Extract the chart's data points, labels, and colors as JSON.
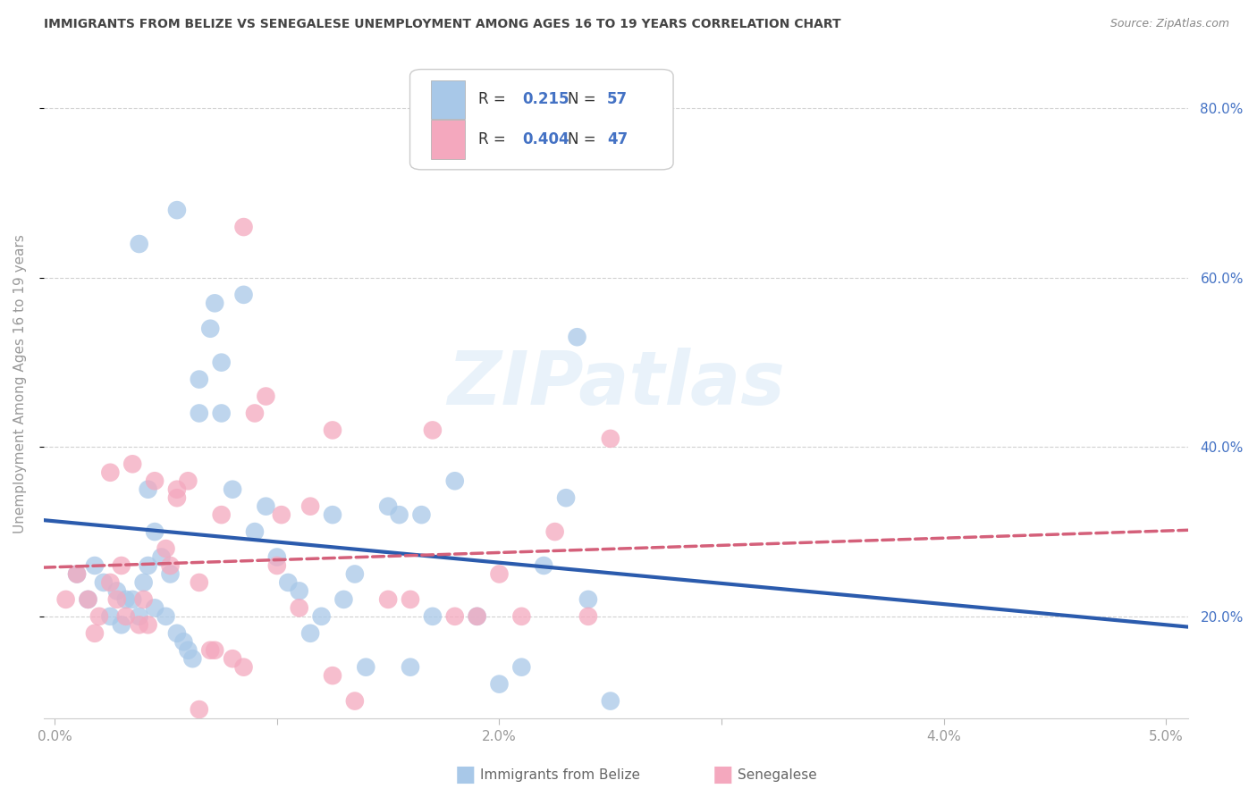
{
  "title": "IMMIGRANTS FROM BELIZE VS SENEGALESE UNEMPLOYMENT AMONG AGES 16 TO 19 YEARS CORRELATION CHART",
  "source": "Source: ZipAtlas.com",
  "ylabel": "Unemployment Among Ages 16 to 19 years",
  "xlim": [
    -0.05,
    5.1
  ],
  "ylim": [
    8.0,
    87.0
  ],
  "xtick_positions": [
    0.0,
    1.0,
    2.0,
    3.0,
    4.0,
    5.0
  ],
  "xticklabels": [
    "0.0%",
    "",
    "2.0%",
    "",
    "4.0%",
    "5.0%"
  ],
  "ytick_grid": [
    20.0,
    40.0,
    60.0,
    80.0
  ],
  "yticklabels_right": [
    "20.0%",
    "40.0%",
    "60.0%",
    "80.0%"
  ],
  "belize_R": "0.215",
  "belize_N": "57",
  "senegal_R": "0.404",
  "senegal_N": "47",
  "belize_color": "#A8C8E8",
  "senegal_color": "#F4A8BE",
  "belize_line_color": "#2B5BAD",
  "senegal_line_color": "#D4607A",
  "watermark": "ZIPatlas",
  "belize_x": [
    0.1,
    0.15,
    0.18,
    0.22,
    0.25,
    0.28,
    0.3,
    0.32,
    0.35,
    0.38,
    0.4,
    0.42,
    0.45,
    0.48,
    0.5,
    0.52,
    0.55,
    0.58,
    0.6,
    0.62,
    0.65,
    0.7,
    0.72,
    0.75,
    0.8,
    0.9,
    0.95,
    1.0,
    1.05,
    1.1,
    1.15,
    1.2,
    1.25,
    1.3,
    1.35,
    1.4,
    1.5,
    1.55,
    1.6,
    1.65,
    1.7,
    1.8,
    1.9,
    2.0,
    2.1,
    2.2,
    2.3,
    2.4,
    2.5,
    0.55,
    0.65,
    0.75,
    0.85,
    0.38,
    0.42,
    0.45,
    2.35
  ],
  "belize_y": [
    25.0,
    22.0,
    26.0,
    24.0,
    20.0,
    23.0,
    19.0,
    22.0,
    22.0,
    20.0,
    24.0,
    26.0,
    21.0,
    27.0,
    20.0,
    25.0,
    18.0,
    17.0,
    16.0,
    15.0,
    48.0,
    54.0,
    57.0,
    50.0,
    35.0,
    30.0,
    33.0,
    27.0,
    24.0,
    23.0,
    18.0,
    20.0,
    32.0,
    22.0,
    25.0,
    14.0,
    33.0,
    32.0,
    14.0,
    32.0,
    20.0,
    36.0,
    20.0,
    12.0,
    14.0,
    26.0,
    34.0,
    22.0,
    10.0,
    68.0,
    44.0,
    44.0,
    58.0,
    64.0,
    35.0,
    30.0,
    53.0
  ],
  "senegal_x": [
    0.05,
    0.1,
    0.15,
    0.18,
    0.2,
    0.25,
    0.28,
    0.3,
    0.32,
    0.38,
    0.4,
    0.42,
    0.5,
    0.52,
    0.55,
    0.6,
    0.65,
    0.7,
    0.72,
    0.8,
    0.85,
    0.9,
    0.95,
    1.0,
    1.02,
    1.1,
    1.15,
    1.25,
    1.35,
    1.5,
    1.6,
    1.7,
    1.8,
    1.9,
    2.0,
    2.1,
    2.25,
    2.4,
    2.5,
    0.25,
    0.35,
    0.45,
    0.55,
    0.65,
    0.75,
    0.85,
    1.25
  ],
  "senegal_y": [
    22.0,
    25.0,
    22.0,
    18.0,
    20.0,
    24.0,
    22.0,
    26.0,
    20.0,
    19.0,
    22.0,
    19.0,
    28.0,
    26.0,
    34.0,
    36.0,
    24.0,
    16.0,
    16.0,
    15.0,
    14.0,
    44.0,
    46.0,
    26.0,
    32.0,
    21.0,
    33.0,
    13.0,
    10.0,
    22.0,
    22.0,
    42.0,
    20.0,
    20.0,
    25.0,
    20.0,
    30.0,
    20.0,
    41.0,
    37.0,
    38.0,
    36.0,
    35.0,
    9.0,
    32.0,
    66.0,
    42.0
  ]
}
